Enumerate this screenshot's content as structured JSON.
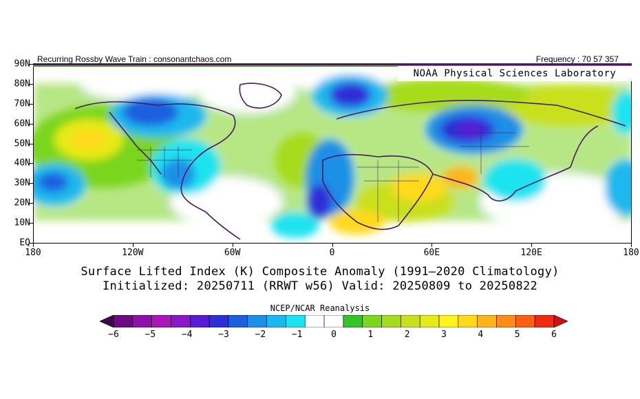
{
  "header": {
    "left_text": "Recurring Rossby Wave Train : consonantchaos.com",
    "right_text": "Frequency : 70 57 357",
    "lab_label": "NOAA Physical Sciences Laboratory"
  },
  "map": {
    "lat_labels": [
      "90N",
      "80N",
      "70N",
      "60N",
      "50N",
      "40N",
      "30N",
      "20N",
      "10N",
      "EQ"
    ],
    "lon_labels": [
      "180",
      "120W",
      "60W",
      "0",
      "60E",
      "120E",
      "180"
    ]
  },
  "titles": {
    "line1": "Surface Lifted Index (K) Composite Anomaly (1991–2020 Climatology)",
    "line2": "Initialized: 20250711 (RRWT w56) Valid: 20250809 to 20250822"
  },
  "colorbar": {
    "source": "NCEP/NCAR Reanalysis",
    "tick_labels": [
      "−6",
      "−5",
      "−4",
      "−3",
      "−2",
      "−1",
      "0",
      "1",
      "2",
      "3",
      "4",
      "5",
      "6"
    ],
    "colors": [
      "#3a0a4f",
      "#6a0c7f",
      "#8e10a8",
      "#a818b8",
      "#8a17c8",
      "#5a1bd6",
      "#2e2ed8",
      "#1b5ee0",
      "#1d8fe6",
      "#1ab8ee",
      "#1de3f0",
      "#ffffff",
      "#ffffff",
      "#33c42a",
      "#7ad61e",
      "#a6dc1e",
      "#c9e01c",
      "#e6ea18",
      "#fff51a",
      "#ffd91a",
      "#ffb41a",
      "#ff8c16",
      "#ff5f14",
      "#ee2a12",
      "#d10f10"
    ]
  }
}
